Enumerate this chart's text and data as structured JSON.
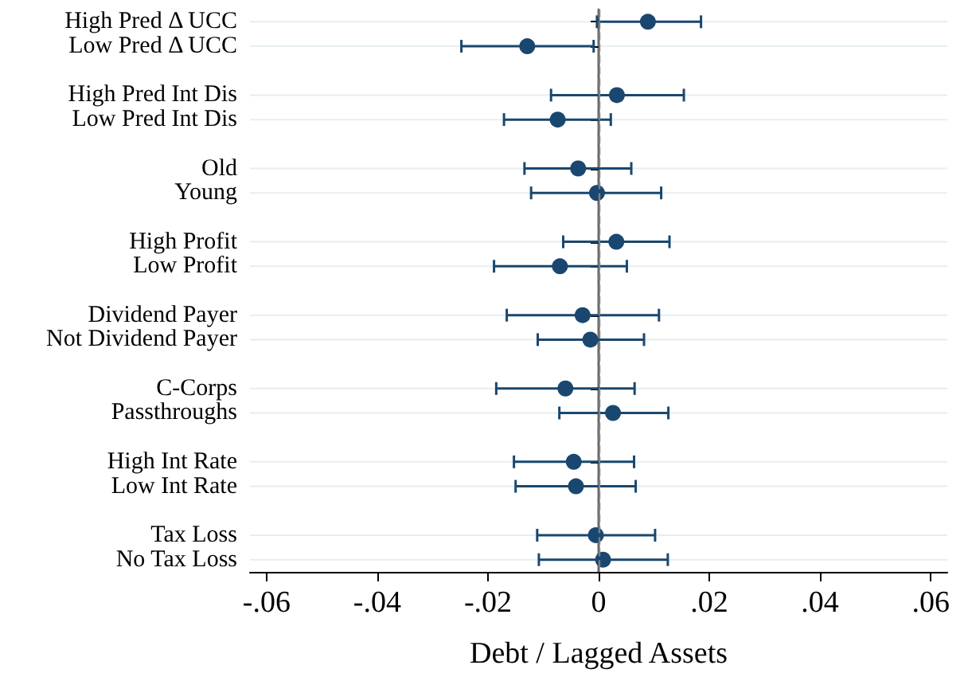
{
  "chart_data": {
    "type": "scatter",
    "orientation": "horizontal",
    "xlabel": "Debt / Lagged Assets",
    "categories": [
      "High Pred Δ UCC",
      "Low Pred Δ UCC",
      null,
      "High Pred Int Dis",
      "Low Pred Int Dis",
      null,
      "Old",
      "Young",
      null,
      "High Profit",
      "Low Profit",
      null,
      "Dividend Payer",
      "Not Dividend Payer",
      null,
      "C-Corps",
      "Passthroughs",
      null,
      "High Int Rate",
      "Low Int Rate",
      null,
      "Tax Loss",
      "No Tax Loss"
    ],
    "values": [
      0.0089,
      -0.0129,
      null,
      0.0033,
      -0.0074,
      null,
      -0.0037,
      -0.0003,
      null,
      0.0032,
      -0.007,
      null,
      -0.0029,
      -0.0015,
      null,
      -0.006,
      0.0026,
      null,
      -0.0045,
      -0.0041,
      null,
      -0.0005,
      0.0008
    ],
    "errors": [
      [
        -0.0003,
        0.0185
      ],
      [
        -0.0248,
        -0.0009
      ],
      null,
      [
        -0.0086,
        0.0154
      ],
      [
        -0.0171,
        0.0022
      ],
      null,
      [
        -0.0134,
        0.0059
      ],
      [
        -0.0122,
        0.0113
      ],
      null,
      [
        -0.0064,
        0.0128
      ],
      [
        -0.0189,
        0.0051
      ],
      null,
      [
        -0.0166,
        0.0109
      ],
      [
        -0.011,
        0.0082
      ],
      null,
      [
        -0.0185,
        0.0065
      ],
      [
        -0.0071,
        0.0126
      ],
      null,
      [
        -0.0153,
        0.0064
      ],
      [
        -0.015,
        0.0067
      ],
      null,
      [
        -0.0111,
        0.0102
      ],
      [
        -0.0108,
        0.0125
      ]
    ],
    "color": "#1a476f",
    "marker": "circle",
    "xlim": [
      -0.063,
      0.063
    ],
    "xticks": [
      {
        "value": -0.06,
        "label": "-.06"
      },
      {
        "value": -0.04,
        "label": "-.04"
      },
      {
        "value": -0.02,
        "label": "-.02"
      },
      0,
      {
        "value": 0.02,
        "label": ".02"
      },
      {
        "value": 0.04,
        "label": ".04"
      },
      {
        "value": 0.06,
        "label": ".06"
      }
    ],
    "ref_lines": [
      {
        "axis": "x",
        "value": 0,
        "line_style": "dashed",
        "color": "#7f7f7f"
      }
    ],
    "grid": "y"
  }
}
